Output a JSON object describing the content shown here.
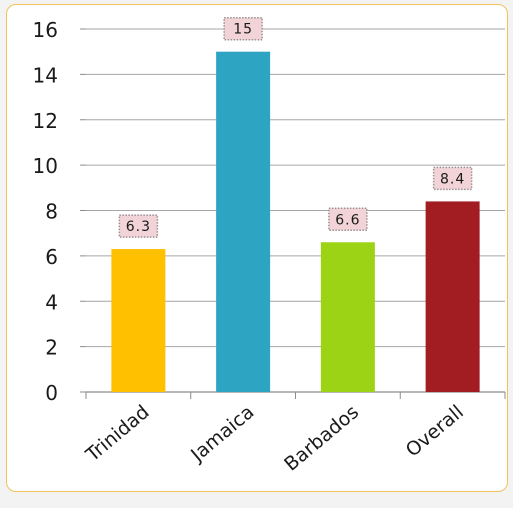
{
  "chart_data": {
    "type": "bar",
    "categories": [
      "Trinidad",
      "Jamaica",
      "Barbados",
      "Overall"
    ],
    "values": [
      6.3,
      15,
      6.6,
      8.4
    ],
    "data_labels": [
      "6.3",
      "15",
      "6.6",
      "8.4"
    ],
    "ylim": [
      0,
      16
    ],
    "yticks": [
      "0",
      "2",
      "4",
      "6",
      "8",
      "10",
      "12",
      "14",
      "16"
    ],
    "grid": true,
    "legend": "none",
    "colors": {
      "bars": [
        "#ffc000",
        "#2ea4c3",
        "#9dd315",
        "#a21d21"
      ],
      "grid": "#a6a6a6",
      "label_bg": "#f2d4d8",
      "panel_border": "#f2c35a"
    }
  }
}
